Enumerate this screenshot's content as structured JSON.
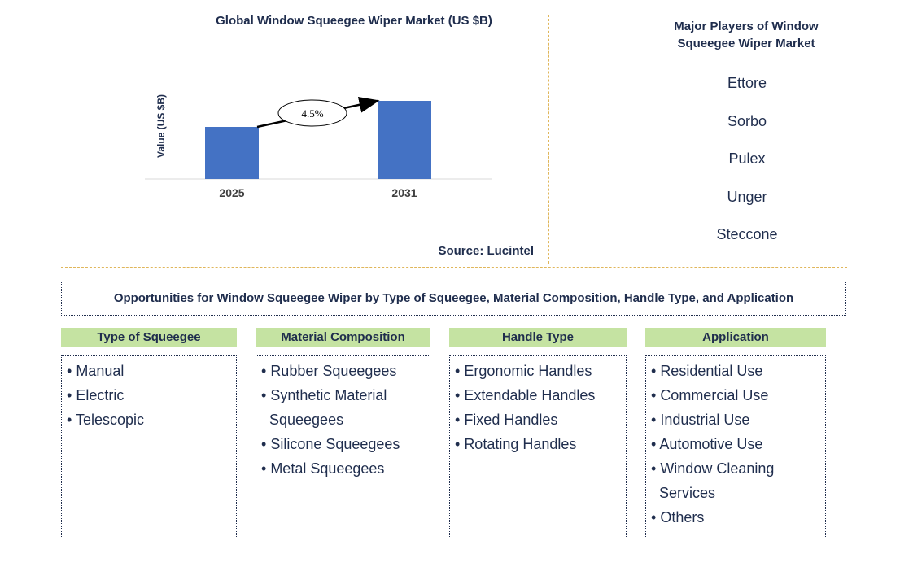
{
  "chart_data": {
    "type": "bar",
    "title": "Global Window Squeegee Wiper Market (US $B)",
    "ylabel": "Value (US $B)",
    "categories": [
      "2025",
      "2031"
    ],
    "values": [
      1.0,
      1.3
    ],
    "ylim": [
      0,
      1.5
    ],
    "growth_label": "4.5%",
    "bar_color": "#4472c4",
    "source": "Source: Lucintel"
  },
  "players": {
    "title": "Major Players of Window Squeegee Wiper Market",
    "items": [
      "Ettore",
      "Sorbo",
      "Pulex",
      "Unger",
      "Steccone"
    ]
  },
  "opportunities": {
    "title": "Opportunities for Window Squeegee Wiper by Type of Squeegee, Material Composition, Handle Type, and Application"
  },
  "segments": [
    {
      "title": "Type of Squeegee",
      "items": [
        "Manual",
        "Electric",
        "Telescopic"
      ]
    },
    {
      "title": "Material Composition",
      "items": [
        "Rubber Squeegees",
        "Synthetic Material Squeegees",
        "Silicone Squeegees",
        "Metal Squeegees"
      ]
    },
    {
      "title": "Handle Type",
      "items": [
        "Ergonomic Handles",
        "Extendable Handles",
        "Fixed Handles",
        "Rotating Handles"
      ]
    },
    {
      "title": "Application",
      "items": [
        "Residential Use",
        "Commercial Use",
        "Industrial Use",
        "Automotive Use",
        "Window Cleaning Services",
        "Others"
      ]
    }
  ],
  "colors": {
    "text": "#1f2d4d",
    "header_bg": "#c5e3a2",
    "divider": "#e0b65a"
  }
}
